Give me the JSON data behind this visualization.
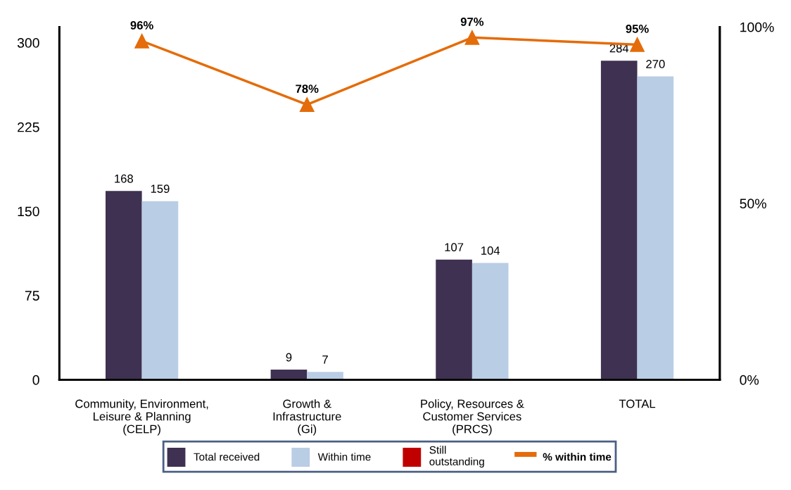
{
  "chart_data": {
    "type": "bar",
    "categories": [
      "Community, Environment,\nLeisure & Planning\n(CELP)",
      "Growth &\nInfrastructure\n(Gi)",
      "Policy, Resources &\nCustomer Services\n(PRCS)",
      "TOTAL"
    ],
    "series": [
      {
        "name": "Total received",
        "color": "#3f3151",
        "values": [
          168,
          9,
          107,
          284
        ]
      },
      {
        "name": "Within time",
        "color": "#b9cde5",
        "values": [
          159,
          7,
          104,
          270
        ]
      },
      {
        "name": "Still\noutstanding",
        "color": "#c00000",
        "values": [
          null,
          null,
          null,
          null
        ]
      },
      {
        "name": "% within time",
        "type": "line",
        "axis": "y2",
        "color": "#e46c0a",
        "marker": "triangle",
        "values": [
          96,
          78,
          97,
          95
        ],
        "value_labels": [
          "96%",
          "78%",
          "97%",
          "95%"
        ]
      }
    ],
    "data_labels": true,
    "ylim": [
      0,
      314
    ],
    "yticks": [
      0,
      75,
      150,
      225,
      300
    ],
    "y2lim": [
      0,
      100
    ],
    "y2ticks": [
      {
        "value": 0,
        "label": "0%"
      },
      {
        "value": 50,
        "label": "50%"
      },
      {
        "value": 100,
        "label": "100%"
      }
    ],
    "grid": false,
    "legend": "bottom"
  }
}
